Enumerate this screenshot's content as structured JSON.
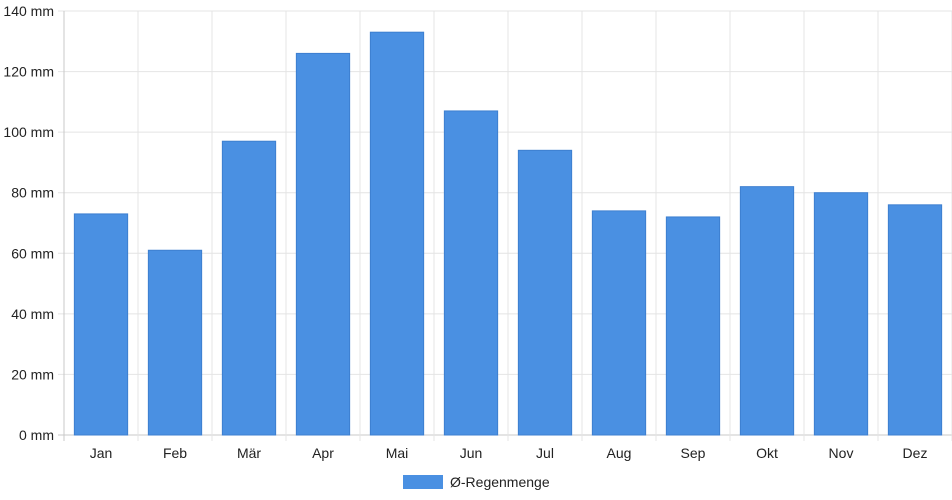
{
  "chart_data": {
    "type": "bar",
    "categories": [
      "Jan",
      "Feb",
      "Mär",
      "Apr",
      "Mai",
      "Jun",
      "Jul",
      "Aug",
      "Sep",
      "Okt",
      "Nov",
      "Dez"
    ],
    "series": [
      {
        "name": "Ø-Regenmenge",
        "color": "#4a90e2",
        "values": [
          73,
          61,
          97,
          126,
          133,
          107,
          94,
          74,
          72,
          82,
          80,
          76
        ]
      }
    ],
    "ylim": [
      0,
      140
    ],
    "yticks": [
      0,
      20,
      40,
      60,
      80,
      100,
      120,
      140
    ],
    "y_tick_suffix": " mm",
    "grid": true,
    "legend_position": "bottom-center"
  }
}
